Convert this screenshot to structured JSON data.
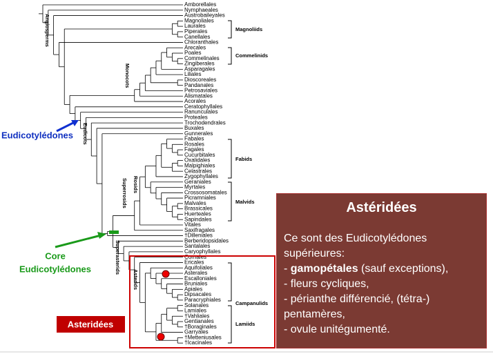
{
  "taxa": [
    "Amborellales",
    "Nymphaeales",
    "Austrobaileyales",
    "Magnoliales",
    "Laurales",
    "Piperales",
    "Canellales",
    "Chloranthales",
    "Arecales",
    "Poales",
    "Commelinales",
    "Zingiberales",
    "Asparagales",
    "Liliales",
    "Dioscoreales",
    "Pandanales",
    "Petrosaviales",
    "Alismatales",
    "Acorales",
    "Ceratophyllales",
    "Ranunculales",
    "Proteales",
    "Trochodendrales",
    "Buxales",
    "Gunnerales",
    "Fabales",
    "Rosales",
    "Fagales",
    "Cucurbitales",
    "Oxalidales",
    "Malpighiales",
    "Celastrales",
    "Zygophyllales",
    "Geraniales",
    "Myrtales",
    "Crossosomatales",
    "Picramniales",
    "Malvales",
    "Brassicales",
    "Huerteales",
    "Sapindales",
    "Vitales",
    "Saxifragales",
    "†Dilleniales",
    "Berberidopsidales",
    "Santalales",
    "Caryophyllales",
    "Cornales",
    "Ericales",
    "Aquifoliales",
    "Asterales",
    "Escalloniales",
    "Bruniales",
    "Apiales",
    "Dipsacales",
    "Paracryphiales",
    "Solanales",
    "Lamiales",
    "†Vahliales",
    "Gentianales",
    "†Boraginales",
    "Garryales",
    "†Metteniusales",
    "†Icacinales"
  ],
  "clades": {
    "angiosperms": "Angiosperms",
    "magnoliids": "Magnoliids",
    "commelinids": "Commelinids",
    "monocots": "Monocots",
    "eudicots": "Eudicots",
    "fabids": "Fabids",
    "rosids": "Rosids",
    "malvids": "Malvids",
    "superrosids": "Superrosids",
    "superasterids": "Superasterids",
    "asterids": "Asterids",
    "campanulids": "Campanulids",
    "lamiids": "Lamiids"
  },
  "annotations": {
    "eudicotyledones": "Eudicotylédones",
    "core_line1": "Core",
    "core_line2": "Eudicotylédones",
    "asteridees": "Asteridées"
  },
  "info_box": {
    "title": "Astéridées",
    "line1": "Ce sont des Eudicotylédones",
    "line2": "supérieures:",
    "line3_prefix": "- ",
    "line3_bold": "gamopétales",
    "line3_suffix": " (sauf exceptions),",
    "line4": "- fleurs cycliques,",
    "line5": "- périanthe différencié, (tétra-)",
    "line6": "pentamères,",
    "line7": "- ovule unitégumenté."
  }
}
